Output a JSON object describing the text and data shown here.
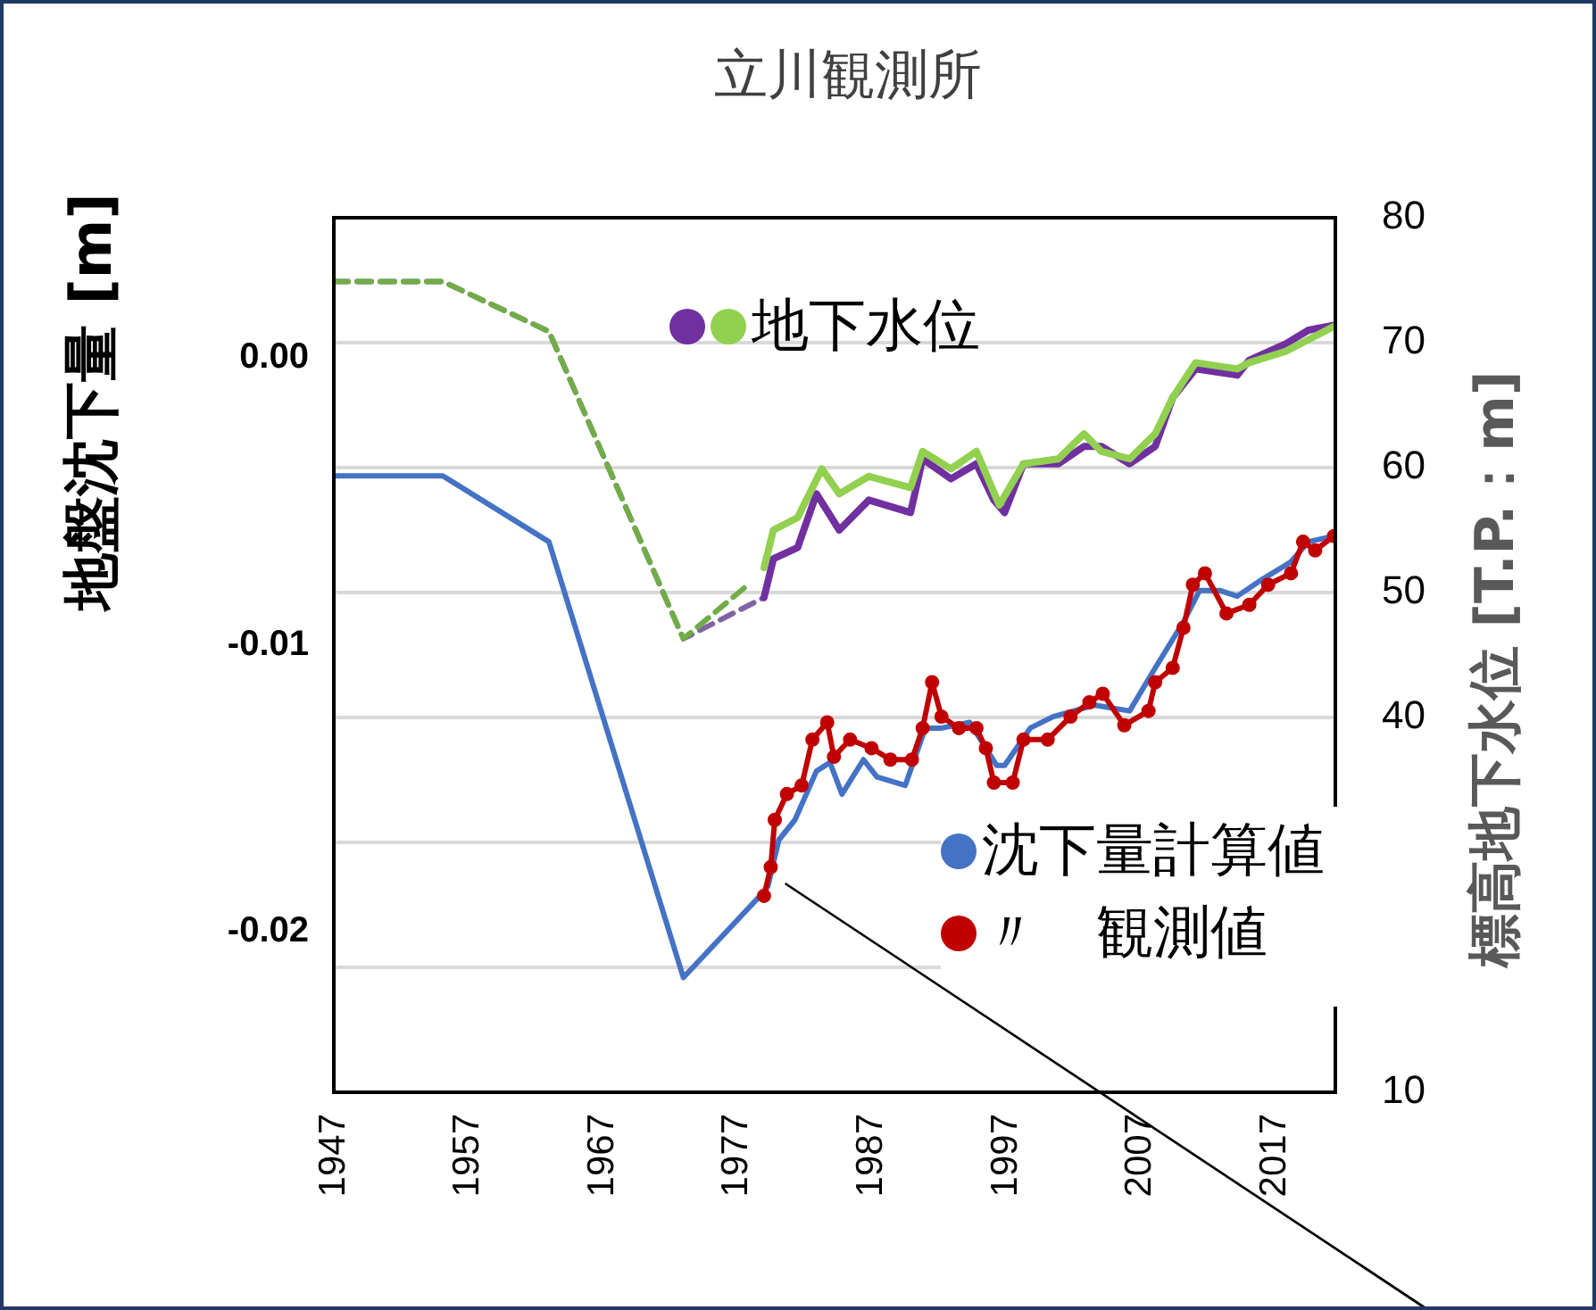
{
  "chart_data": {
    "type": "line",
    "title": "立川観測所",
    "ylabel": "地盤沈下量 [m]",
    "y2label": "標高地下水位 [T.P.：m]",
    "xlim": [
      1947,
      2021.5
    ],
    "xticks": [
      1947,
      1957,
      1967,
      1977,
      1987,
      1997,
      2007,
      2017
    ],
    "ylim": [
      -0.0256,
      0.0049
    ],
    "yticks": [
      -0.02,
      -0.01,
      {
        "value": 0,
        "label": "0.00"
      }
    ],
    "y2lim": [
      10,
      80
    ],
    "y2ticks": [
      10,
      {
        "value": 20,
        "label": null
      },
      {
        "value": 30,
        "label": null
      },
      40,
      50,
      60,
      70,
      80
    ],
    "grid": "y2",
    "legend": "top",
    "marker": "none",
    "series": [
      {
        "color": "#8064a2",
        "axis": "y2",
        "line_style": "dashed",
        "x": [
          1947,
          1955.1,
          1963,
          1973,
          1979
        ],
        "values": [
          74.9,
          74.9,
          70.9,
          46.3,
          49.6
        ]
      },
      {
        "color": "#70ad47",
        "axis": "y2",
        "line_style": "dashed",
        "x": [
          1947,
          1955.1,
          1963,
          1973,
          1977.9
        ],
        "values": [
          74.9,
          74.9,
          70.9,
          46.3,
          50.7
        ]
      },
      {
        "color": "#7030a0",
        "axis": "y2",
        "x": [
          1979,
          1979.7,
          1981.5,
          1982.9,
          1984.6,
          1986.8,
          1989.9,
          1990.8,
          1992.9,
          1994.8,
          1996.1,
          1996.9,
          1998.3,
          2000.9,
          2002.8,
          2004.1,
          2006.2,
          2008.1,
          2009.4,
          2011.1,
          2014.2,
          2015.1,
          2017.8,
          2019.5,
          2021.4
        ],
        "values": [
          49.6,
          52.7,
          53.6,
          57.9,
          55.0,
          57.4,
          56.4,
          60.7,
          59.1,
          60.3,
          57.4,
          56.4,
          60.3,
          60.3,
          61.7,
          61.7,
          60.3,
          61.7,
          65.6,
          67.9,
          67.4,
          68.6,
          69.9,
          71.0,
          71.4
        ]
      },
      {
        "name": "地下水位",
        "color": "#92d050",
        "axis": "y2",
        "x": [
          1979,
          1979.7,
          1981.5,
          1983.3,
          1984.6,
          1986.8,
          1989.9,
          1990.8,
          1992.9,
          1994.8,
          1996.5,
          1998.3,
          2000.9,
          2002.8,
          2004.1,
          2006.2,
          2008.1,
          2009.4,
          2011.1,
          2014.2,
          2015.1,
          2017.8,
          2021.4
        ],
        "values": [
          52.0,
          55.0,
          56.0,
          59.9,
          57.9,
          59.3,
          58.4,
          61.3,
          59.9,
          61.3,
          57.0,
          60.3,
          60.7,
          62.7,
          61.3,
          60.7,
          62.7,
          65.6,
          68.4,
          67.9,
          68.4,
          69.3,
          71.3
        ]
      },
      {
        "name": "沈下量計算値",
        "color": "#4472c4",
        "x": [
          1947,
          1955.1,
          1963,
          1973,
          1979,
          1979.3,
          1980.1,
          1981.3,
          1982.9,
          1983.9,
          1984.8,
          1986.4,
          1987.4,
          1989.5,
          1991,
          1992.2,
          1994.3,
          1996.3,
          1996.9,
          1998.8,
          2000.5,
          2003.6,
          2006.2,
          2008.1,
          2010.2,
          2011.4,
          2012.9,
          2014.2,
          2016.1,
          2018.2,
          2019.5,
          2021.4
        ],
        "values": [
          -0.0041,
          -0.0041,
          -0.0064,
          -0.0216,
          -0.0186,
          -0.0184,
          -0.0168,
          -0.0161,
          -0.0144,
          -0.0141,
          -0.0152,
          -0.014,
          -0.0146,
          -0.0149,
          -0.0129,
          -0.0129,
          -0.0127,
          -0.0142,
          -0.0142,
          -0.0129,
          -0.0125,
          -0.0121,
          -0.0123,
          -0.0108,
          -0.0092,
          -0.0081,
          -0.0081,
          -0.0083,
          -0.0077,
          -0.0071,
          -0.0064,
          -0.0062
        ]
      },
      {
        "name": "〃　観測値",
        "color": "#c00000",
        "marker": "circle",
        "x": [
          1979,
          1979.5,
          1979.8,
          1980.7,
          1981.8,
          1982.6,
          1983.7,
          1984.2,
          1985.4,
          1987,
          1988.4,
          1990,
          1990.8,
          1991.5,
          1992.2,
          1993.5,
          1994.8,
          1995.5,
          1996.1,
          1997.5,
          1998.3,
          2000.1,
          2001.8,
          2003.2,
          2004.2,
          2005.8,
          2007.6,
          2008.1,
          2009.4,
          2010.2,
          2010.9,
          2011.8,
          2013.4,
          2015.1,
          2016.5,
          2018.2,
          2019.1,
          2020,
          2021.4
        ],
        "values": [
          -0.01875,
          -0.01775,
          -0.0161,
          -0.0152,
          -0.0149,
          -0.0133,
          -0.0127,
          -0.0139,
          -0.0133,
          -0.0136,
          -0.014,
          -0.014,
          -0.0129,
          -0.0113,
          -0.0125,
          -0.0129,
          -0.0129,
          -0.0136,
          -0.0148,
          -0.0148,
          -0.0133,
          -0.0133,
          -0.0125,
          -0.012,
          -0.0117,
          -0.0128,
          -0.0123,
          -0.0113,
          -0.0108,
          -0.0094,
          -0.0079,
          -0.0075,
          -0.0089,
          -0.0086,
          -0.0079,
          -0.0075,
          -0.0064,
          -0.0067,
          -0.0062
        ]
      }
    ]
  }
}
